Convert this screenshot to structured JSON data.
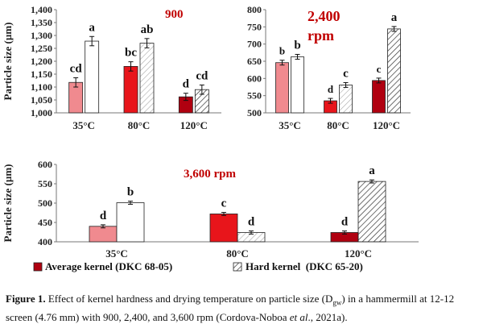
{
  "colors": {
    "bar_35C": "#f08a8f",
    "bar_80C": "#e8151b",
    "bar_120C": "#b00010",
    "hard_35C": "#ffffff",
    "hard_80C": "#cccccc",
    "hard_120C": "#444444",
    "rpm_text": "#c00000"
  },
  "chart_data": [
    {
      "type": "bar",
      "panel": "top-left",
      "title": "900",
      "ylabel": "Particle size (µm)",
      "ylim": [
        1000,
        1400
      ],
      "yticks": [
        "1,000",
        "1,050",
        "1,100",
        "1,150",
        "1,200",
        "1,250",
        "1,300",
        "1,350",
        "1,400"
      ],
      "categories": [
        "35°C",
        "80°C",
        "120°C"
      ],
      "series": [
        {
          "name": "Average kernel (DKC 68-05)",
          "values": [
            1118,
            1180,
            1062
          ],
          "errors": [
            18,
            18,
            14
          ],
          "letters": [
            "cd",
            "bc",
            "d"
          ]
        },
        {
          "name": "Hard kernel (DKC 65-20)",
          "values": [
            1278,
            1270,
            1090
          ],
          "errors": [
            18,
            18,
            18
          ],
          "letters": [
            "a",
            "ab",
            "cd"
          ]
        }
      ]
    },
    {
      "type": "bar",
      "panel": "top-right",
      "title": "2,400",
      "title2": "rpm",
      "ylabel": "",
      "ylim": [
        500,
        800
      ],
      "yticks": [
        "500",
        "550",
        "600",
        "650",
        "700",
        "750",
        "800"
      ],
      "categories": [
        "35°C",
        "80°C",
        "120°C"
      ],
      "series": [
        {
          "name": "Average kernel (DKC 68-05)",
          "values": [
            646,
            535,
            594
          ],
          "errors": [
            7,
            7,
            7
          ],
          "letters": [
            "b",
            "d",
            "c"
          ]
        },
        {
          "name": "Hard kernel (DKC 65-20)",
          "values": [
            663,
            581,
            744
          ],
          "errors": [
            7,
            7,
            7
          ],
          "letters": [
            "b",
            "c",
            "a"
          ]
        }
      ]
    },
    {
      "type": "bar",
      "panel": "bottom",
      "title": "3,600 rpm",
      "ylabel": "Particle size (µm)",
      "ylim": [
        400,
        600
      ],
      "yticks": [
        "400",
        "450",
        "500",
        "550",
        "600"
      ],
      "categories": [
        "35°C",
        "80°C",
        "120°C"
      ],
      "series": [
        {
          "name": "Average kernel (DKC 68-05)",
          "values": [
            440,
            472,
            424
          ],
          "errors": [
            4,
            4,
            4
          ],
          "letters": [
            "d",
            "c",
            "d"
          ]
        },
        {
          "name": "Hard kernel (DKC 65-20)",
          "values": [
            501,
            424,
            556
          ],
          "errors": [
            4,
            4,
            4
          ],
          "letters": [
            "b",
            "d",
            "a"
          ]
        }
      ]
    }
  ],
  "legend": {
    "average": "Average kernel (DKC 68-05)",
    "hard": "Hard kernel  (DKC 65-20)"
  },
  "caption": {
    "label": "Figure 1.",
    "text1": " Effect of kernel hardness and drying temperature on particle size (D",
    "sub": "gw",
    "text2": ") in a hammermill at 12-12 screen (4.76 mm) with 900, 2,400, and 3,600 rpm (Cordova-Noboa ",
    "etal": "et al",
    "text3": "., 2021a)."
  }
}
